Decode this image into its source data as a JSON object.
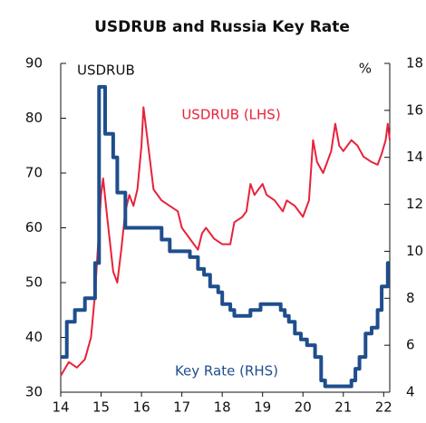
{
  "chart_data": {
    "type": "line",
    "title": "USDRUB and Russia Key Rate",
    "y_label": "USDRUB",
    "y2_label": "%",
    "xlim": [
      14,
      22.15
    ],
    "xticks": [
      14,
      15,
      16,
      17,
      18,
      19,
      20,
      21,
      22
    ],
    "ylim": [
      30,
      90
    ],
    "yticks": [
      30,
      40,
      50,
      60,
      70,
      80,
      90
    ],
    "y2lim": [
      4,
      18
    ],
    "y2ticks": [
      4,
      6,
      8,
      10,
      12,
      14,
      16,
      18
    ],
    "series": [
      {
        "name": "USDRUB (LHS)",
        "color": "#e8223a",
        "x": [
          14.0,
          14.2,
          14.4,
          14.6,
          14.75,
          14.85,
          14.95,
          15.0,
          15.05,
          15.15,
          15.3,
          15.4,
          15.5,
          15.6,
          15.7,
          15.8,
          15.9,
          16.0,
          16.05,
          16.15,
          16.3,
          16.5,
          16.7,
          16.9,
          17.0,
          17.2,
          17.4,
          17.5,
          17.6,
          17.8,
          18.0,
          18.2,
          18.3,
          18.5,
          18.6,
          18.7,
          18.8,
          18.9,
          19.0,
          19.1,
          19.3,
          19.5,
          19.6,
          19.8,
          20.0,
          20.15,
          20.25,
          20.35,
          20.5,
          20.6,
          20.7,
          20.8,
          20.9,
          21.0,
          21.2,
          21.35,
          21.5,
          21.7,
          21.85,
          21.95,
          22.05,
          22.1,
          22.15
        ],
        "values": [
          33,
          35.5,
          34.5,
          36,
          40,
          48,
          60,
          66,
          69,
          62,
          52,
          50,
          56,
          63,
          66,
          64,
          67,
          75,
          82,
          76,
          67,
          65,
          64,
          63,
          60,
          58,
          56,
          59,
          60,
          58,
          57,
          57,
          61,
          62,
          63,
          68,
          66,
          67,
          68,
          66,
          65,
          63,
          65,
          64,
          62,
          65,
          76,
          72,
          70,
          72,
          74,
          79,
          75,
          74,
          76,
          75,
          73,
          72,
          71.5,
          73.5,
          76,
          79,
          76
        ]
      },
      {
        "name": "Key Rate (RHS)",
        "color": "#1f4e8c",
        "axis": "y2",
        "x": [
          14.0,
          14.15,
          14.15,
          14.35,
          14.35,
          14.6,
          14.6,
          14.85,
          14.85,
          14.95,
          14.95,
          15.1,
          15.1,
          15.3,
          15.3,
          15.4,
          15.4,
          15.6,
          15.6,
          16.5,
          16.5,
          16.7,
          16.7,
          17.2,
          17.2,
          17.4,
          17.4,
          17.55,
          17.55,
          17.7,
          17.7,
          17.9,
          17.9,
          18.0,
          18.0,
          18.2,
          18.2,
          18.3,
          18.3,
          18.7,
          18.7,
          18.95,
          18.95,
          19.45,
          19.45,
          19.55,
          19.55,
          19.65,
          19.65,
          19.8,
          19.8,
          19.95,
          19.95,
          20.1,
          20.1,
          20.3,
          20.3,
          20.45,
          20.45,
          20.55,
          20.55,
          21.2,
          21.2,
          21.3,
          21.3,
          21.4,
          21.4,
          21.55,
          21.55,
          21.7,
          21.7,
          21.85,
          21.85,
          21.95,
          21.95,
          22.1,
          22.1,
          22.14
        ],
        "values": [
          5.5,
          5.5,
          7,
          7,
          7.5,
          7.5,
          8,
          8,
          9.5,
          9.5,
          17,
          17,
          15,
          15,
          14,
          14,
          12.5,
          12.5,
          11,
          11,
          10.5,
          10.5,
          10,
          10,
          9.75,
          9.75,
          9.25,
          9.25,
          9,
          9,
          8.5,
          8.5,
          8.25,
          8.25,
          7.75,
          7.75,
          7.5,
          7.5,
          7.25,
          7.25,
          7.5,
          7.5,
          7.75,
          7.75,
          7.5,
          7.5,
          7.25,
          7.25,
          7,
          7,
          6.5,
          6.5,
          6.25,
          6.25,
          6,
          6,
          5.5,
          5.5,
          4.5,
          4.5,
          4.25,
          4.25,
          4.5,
          4.5,
          5,
          5,
          5.5,
          5.5,
          6.5,
          6.5,
          6.75,
          6.75,
          7.5,
          7.5,
          8.5,
          8.5,
          9.5,
          9.5
        ]
      }
    ]
  }
}
